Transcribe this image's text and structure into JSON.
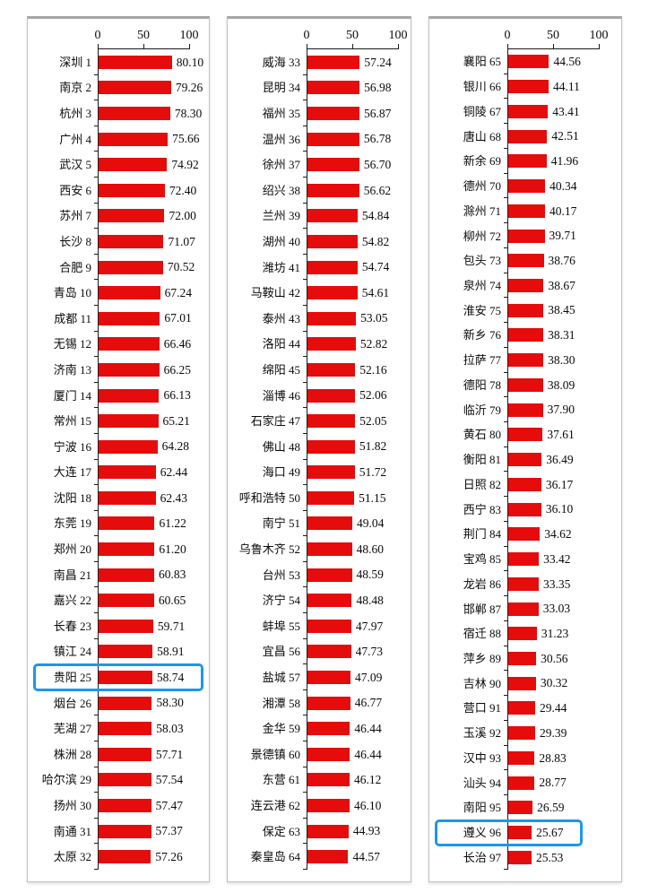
{
  "figure_name": "city-ranking-bar-chart",
  "chart_data": {
    "type": "bar",
    "orientation": "horizontal",
    "title": "",
    "xlabel": "",
    "ylabel": "",
    "value_axis": {
      "position": "top",
      "ticks": [
        "0",
        "50",
        "100"
      ],
      "min": 0,
      "max": 100
    },
    "bar_color": "#e60c0c",
    "highlight_box_color": "#1e96ea",
    "highlighted_rows": [
      "贵阳 25",
      "遵义 96"
    ],
    "panels": [
      {
        "name": "ranks-1-32",
        "rows": [
          {
            "city": "深圳",
            "rank": "1",
            "value": "80.10"
          },
          {
            "city": "南京",
            "rank": "2",
            "value": "79.26"
          },
          {
            "city": "杭州",
            "rank": "3",
            "value": "78.30"
          },
          {
            "city": "广州",
            "rank": "4",
            "value": "75.66"
          },
          {
            "city": "武汉",
            "rank": "5",
            "value": "74.92"
          },
          {
            "city": "西安",
            "rank": "6",
            "value": "72.40"
          },
          {
            "city": "苏州",
            "rank": "7",
            "value": "72.00"
          },
          {
            "city": "长沙",
            "rank": "8",
            "value": "71.07"
          },
          {
            "city": "合肥",
            "rank": "9",
            "value": "70.52"
          },
          {
            "city": "青岛",
            "rank": "10",
            "value": "67.24"
          },
          {
            "city": "成都",
            "rank": "11",
            "value": "67.01"
          },
          {
            "city": "无锡",
            "rank": "12",
            "value": "66.46"
          },
          {
            "city": "济南",
            "rank": "13",
            "value": "66.25"
          },
          {
            "city": "厦门",
            "rank": "14",
            "value": "66.13"
          },
          {
            "city": "常州",
            "rank": "15",
            "value": "65.21"
          },
          {
            "city": "宁波",
            "rank": "16",
            "value": "64.28"
          },
          {
            "city": "大连",
            "rank": "17",
            "value": "62.44"
          },
          {
            "city": "沈阳",
            "rank": "18",
            "value": "62.43"
          },
          {
            "city": "东莞",
            "rank": "19",
            "value": "61.22"
          },
          {
            "city": "郑州",
            "rank": "20",
            "value": "61.20"
          },
          {
            "city": "南昌",
            "rank": "21",
            "value": "60.83"
          },
          {
            "city": "嘉兴",
            "rank": "22",
            "value": "60.65"
          },
          {
            "city": "长春",
            "rank": "23",
            "value": "59.71"
          },
          {
            "city": "镇江",
            "rank": "24",
            "value": "58.91"
          },
          {
            "city": "贵阳",
            "rank": "25",
            "value": "58.74",
            "highlight": true
          },
          {
            "city": "烟台",
            "rank": "26",
            "value": "58.30"
          },
          {
            "city": "芜湖",
            "rank": "27",
            "value": "58.03"
          },
          {
            "city": "株洲",
            "rank": "28",
            "value": "57.71"
          },
          {
            "city": "哈尔滨",
            "rank": "29",
            "value": "57.54"
          },
          {
            "city": "扬州",
            "rank": "30",
            "value": "57.47"
          },
          {
            "city": "南通",
            "rank": "31",
            "value": "57.37"
          },
          {
            "city": "太原",
            "rank": "32",
            "value": "57.26"
          }
        ]
      },
      {
        "name": "ranks-33-64",
        "rows": [
          {
            "city": "威海",
            "rank": "33",
            "value": "57.24"
          },
          {
            "city": "昆明",
            "rank": "34",
            "value": "56.98"
          },
          {
            "city": "福州",
            "rank": "35",
            "value": "56.87"
          },
          {
            "city": "温州",
            "rank": "36",
            "value": "56.78"
          },
          {
            "city": "徐州",
            "rank": "37",
            "value": "56.70"
          },
          {
            "city": "绍兴",
            "rank": "38",
            "value": "56.62"
          },
          {
            "city": "兰州",
            "rank": "39",
            "value": "54.84"
          },
          {
            "city": "湖州",
            "rank": "40",
            "value": "54.82"
          },
          {
            "city": "潍坊",
            "rank": "41",
            "value": "54.74"
          },
          {
            "city": "马鞍山",
            "rank": "42",
            "value": "54.61"
          },
          {
            "city": "泰州",
            "rank": "43",
            "value": "53.05"
          },
          {
            "city": "洛阳",
            "rank": "44",
            "value": "52.82"
          },
          {
            "city": "绵阳",
            "rank": "45",
            "value": "52.16"
          },
          {
            "city": "淄博",
            "rank": "46",
            "value": "52.06"
          },
          {
            "city": "石家庄",
            "rank": "47",
            "value": "52.05"
          },
          {
            "city": "佛山",
            "rank": "48",
            "value": "51.82"
          },
          {
            "city": "海口",
            "rank": "49",
            "value": "51.72"
          },
          {
            "city": "呼和浩特",
            "rank": "50",
            "value": "51.15"
          },
          {
            "city": "南宁",
            "rank": "51",
            "value": "49.04"
          },
          {
            "city": "乌鲁木齐",
            "rank": "52",
            "value": "48.60"
          },
          {
            "city": "台州",
            "rank": "53",
            "value": "48.59"
          },
          {
            "city": "济宁",
            "rank": "54",
            "value": "48.48"
          },
          {
            "city": "蚌埠",
            "rank": "55",
            "value": "47.97"
          },
          {
            "city": "宜昌",
            "rank": "56",
            "value": "47.73"
          },
          {
            "city": "盐城",
            "rank": "57",
            "value": "47.09"
          },
          {
            "city": "湘潭",
            "rank": "58",
            "value": "46.77"
          },
          {
            "city": "金华",
            "rank": "59",
            "value": "46.44"
          },
          {
            "city": "景德镇",
            "rank": "60",
            "value": "46.44"
          },
          {
            "city": "东营",
            "rank": "61",
            "value": "46.12"
          },
          {
            "city": "连云港",
            "rank": "62",
            "value": "46.10"
          },
          {
            "city": "保定",
            "rank": "63",
            "value": "44.93"
          },
          {
            "city": "秦皇岛",
            "rank": "64",
            "value": "44.57"
          }
        ]
      },
      {
        "name": "ranks-65-97",
        "rows": [
          {
            "city": "襄阳",
            "rank": "65",
            "value": "44.56"
          },
          {
            "city": "银川",
            "rank": "66",
            "value": "44.11"
          },
          {
            "city": "铜陵",
            "rank": "67",
            "value": "43.41"
          },
          {
            "city": "唐山",
            "rank": "68",
            "value": "42.51"
          },
          {
            "city": "新余",
            "rank": "69",
            "value": "41.96"
          },
          {
            "city": "德州",
            "rank": "70",
            "value": "40.34"
          },
          {
            "city": "滁州",
            "rank": "71",
            "value": "40.17"
          },
          {
            "city": "柳州",
            "rank": "72",
            "value": "39.71"
          },
          {
            "city": "包头",
            "rank": "73",
            "value": "38.76"
          },
          {
            "city": "泉州",
            "rank": "74",
            "value": "38.67"
          },
          {
            "city": "淮安",
            "rank": "75",
            "value": "38.45"
          },
          {
            "city": "新乡",
            "rank": "76",
            "value": "38.31"
          },
          {
            "city": "拉萨",
            "rank": "77",
            "value": "38.30"
          },
          {
            "city": "德阳",
            "rank": "78",
            "value": "38.09"
          },
          {
            "city": "临沂",
            "rank": "79",
            "value": "37.90"
          },
          {
            "city": "黄石",
            "rank": "80",
            "value": "37.61"
          },
          {
            "city": "衡阳",
            "rank": "81",
            "value": "36.49"
          },
          {
            "city": "日照",
            "rank": "82",
            "value": "36.17"
          },
          {
            "city": "西宁",
            "rank": "83",
            "value": "36.10"
          },
          {
            "city": "荆门",
            "rank": "84",
            "value": "34.62"
          },
          {
            "city": "宝鸡",
            "rank": "85",
            "value": "33.42"
          },
          {
            "city": "龙岩",
            "rank": "86",
            "value": "33.35"
          },
          {
            "city": "邯郸",
            "rank": "87",
            "value": "33.03"
          },
          {
            "city": "宿迁",
            "rank": "88",
            "value": "31.23"
          },
          {
            "city": "萍乡",
            "rank": "89",
            "value": "30.56"
          },
          {
            "city": "吉林",
            "rank": "90",
            "value": "30.32"
          },
          {
            "city": "营口",
            "rank": "91",
            "value": "29.44"
          },
          {
            "city": "玉溪",
            "rank": "92",
            "value": "29.39"
          },
          {
            "city": "汉中",
            "rank": "93",
            "value": "28.83"
          },
          {
            "city": "汕头",
            "rank": "94",
            "value": "28.77"
          },
          {
            "city": "南阳",
            "rank": "95",
            "value": "26.59"
          },
          {
            "city": "遵义",
            "rank": "96",
            "value": "25.67",
            "highlight": true
          },
          {
            "city": "长治",
            "rank": "97",
            "value": "25.53"
          }
        ]
      }
    ]
  }
}
